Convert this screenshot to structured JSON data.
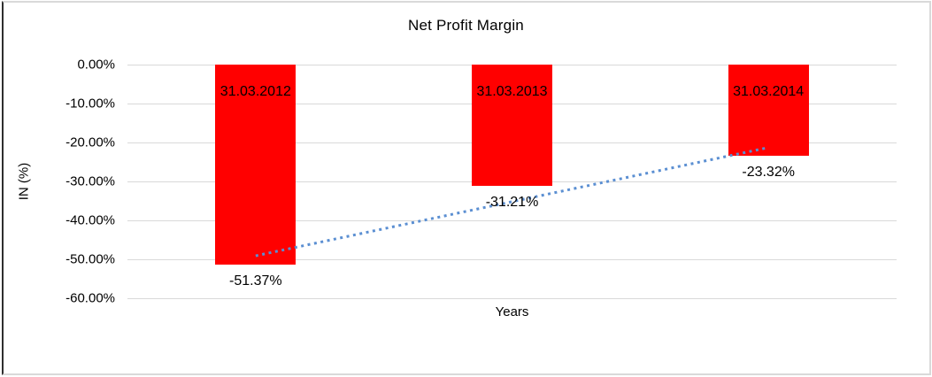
{
  "chart": {
    "title": "Net Profit Margin",
    "y_axis_title": "IN (%)",
    "x_axis_title": "Years",
    "bar_color": "#ff0000",
    "grid_color": "#d9d9d9",
    "trend_color": "#5b8fd2",
    "text_color": "#000000"
  },
  "chart_data": {
    "type": "bar",
    "title": "Net Profit Margin",
    "xlabel": "Years",
    "ylabel": "IN (%)",
    "categories": [
      "31.03.2012",
      "31.03.2013",
      "31.03.2014"
    ],
    "values": [
      -51.37,
      -31.21,
      -23.32
    ],
    "value_labels": [
      "-51.37%",
      "-31.21%",
      "-23.32%"
    ],
    "y_ticks": [
      "0.00%",
      "-10.00%",
      "-20.00%",
      "-30.00%",
      "-40.00%",
      "-50.00%",
      "-60.00%"
    ],
    "ylim": [
      -60,
      0
    ],
    "grid": true,
    "legend_position": "none",
    "series_color": "#ff0000",
    "trendline": {
      "type": "linear",
      "style": "dotted",
      "color": "#5b8fd2",
      "start_value": -49.1,
      "end_value": -21.4
    }
  }
}
